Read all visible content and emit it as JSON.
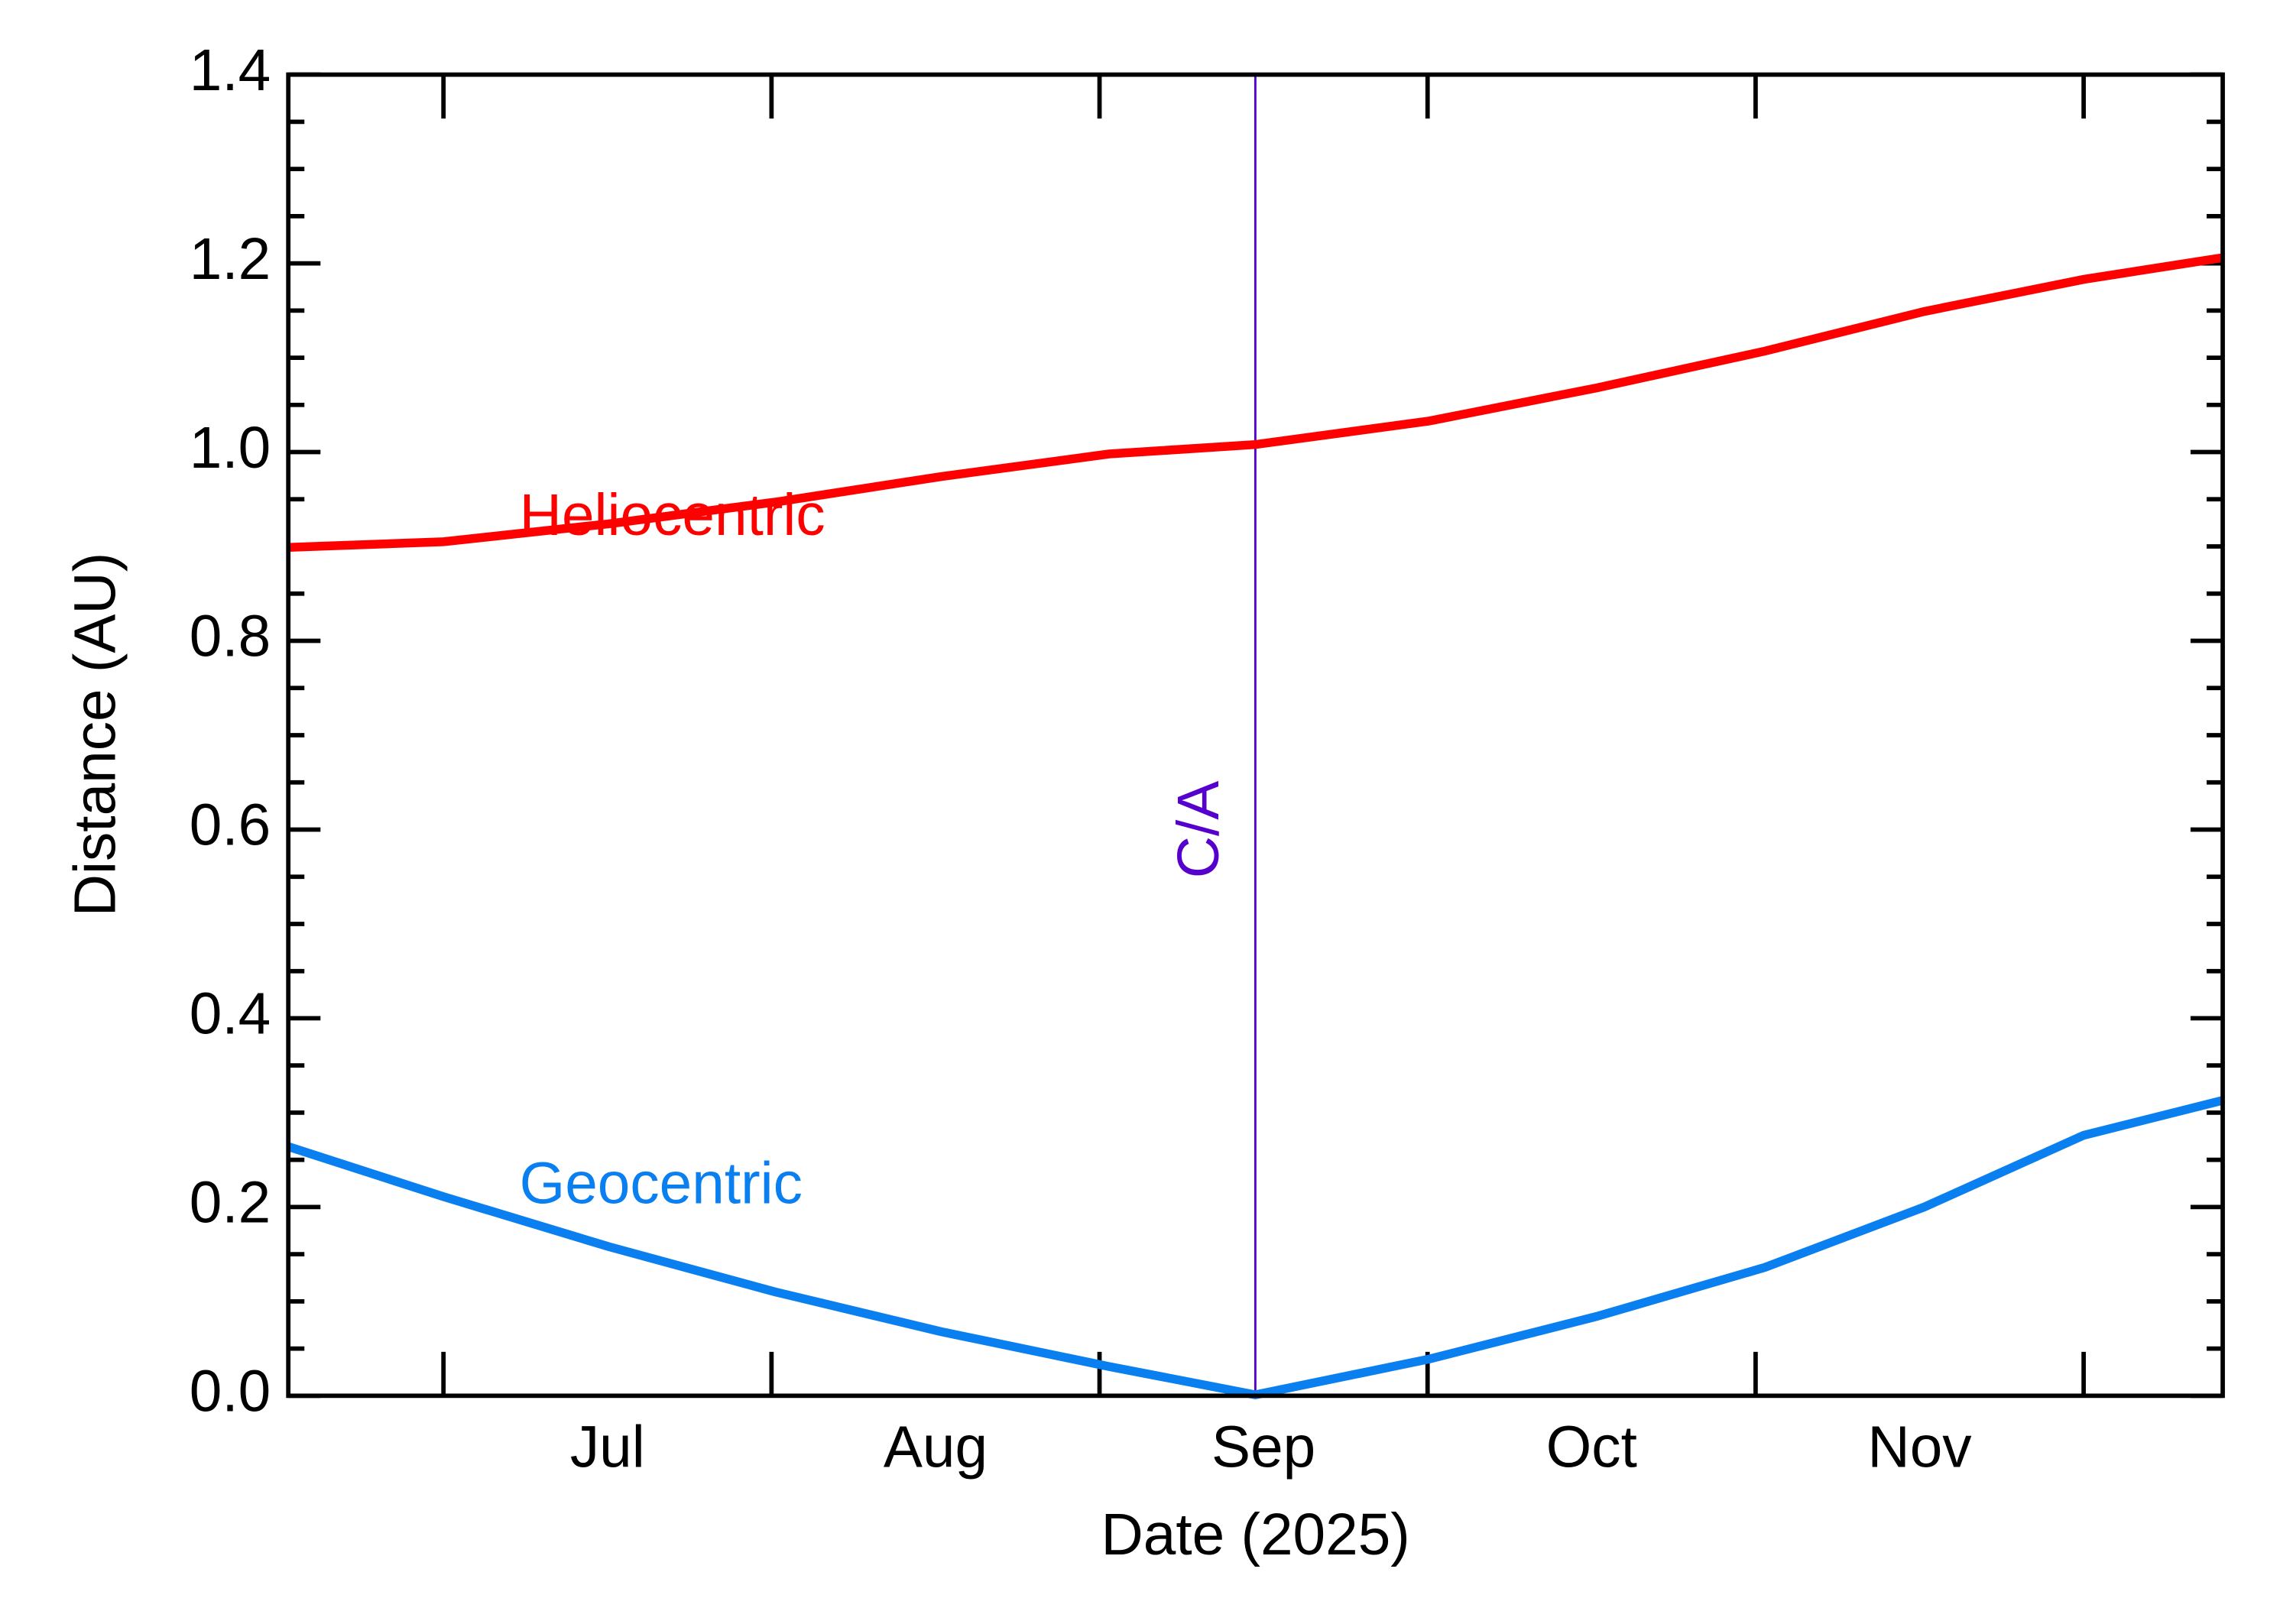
{
  "chart_data": {
    "type": "line",
    "xlabel": "Date (2025)",
    "ylabel": "Distance (AU)",
    "x": [
      6.527,
      7,
      7.504,
      8.012,
      8.516,
      9.029,
      9.475,
      10.006,
      10.515,
      11.028,
      11.514,
      12,
      12.424
    ],
    "series": [
      {
        "name": "Heliocentric",
        "color": "#ff0000",
        "values": [
          0.899,
          0.905,
          0.924,
          0.947,
          0.974,
          0.998,
          1.008,
          1.033,
          1.068,
          1.107,
          1.149,
          1.183,
          1.206
        ]
      },
      {
        "name": "Geocentric",
        "color": "#0a7ff0",
        "values": [
          0.264,
          0.211,
          0.158,
          0.11,
          0.068,
          0.031,
          0.001,
          0.039,
          0.084,
          0.136,
          0.2,
          0.276,
          0.313
        ]
      }
    ],
    "xlim": [
      6.527,
      12.424
    ],
    "xticks": [
      {
        "value": 7.5,
        "label": "Jul"
      },
      {
        "value": 8.5,
        "label": "Aug"
      },
      {
        "value": 9.5,
        "label": "Sep"
      },
      {
        "value": 10.5,
        "label": "Oct"
      },
      {
        "value": 11.5,
        "label": "Nov"
      }
    ],
    "xtick_marks": [
      7,
      8,
      9,
      10,
      11,
      12
    ],
    "ylim": [
      0,
      1.4
    ],
    "yticks": [
      {
        "value": 0,
        "label": "0.0"
      },
      0.2,
      0.4,
      0.6,
      0.8,
      {
        "value": 1,
        "label": "1.0"
      },
      1.2,
      1.4
    ],
    "yminorticks": [
      0.05,
      0.1,
      0.15,
      0.25,
      0.3,
      0.35,
      0.45,
      0.5,
      0.55,
      0.65,
      0.7,
      0.75,
      0.85,
      0.9,
      0.95,
      1.05,
      1.1,
      1.15,
      1.25,
      1.3,
      1.35
    ],
    "closest_approach": {
      "x": 9.475,
      "label": "C/A",
      "color": "#5500cc"
    }
  }
}
